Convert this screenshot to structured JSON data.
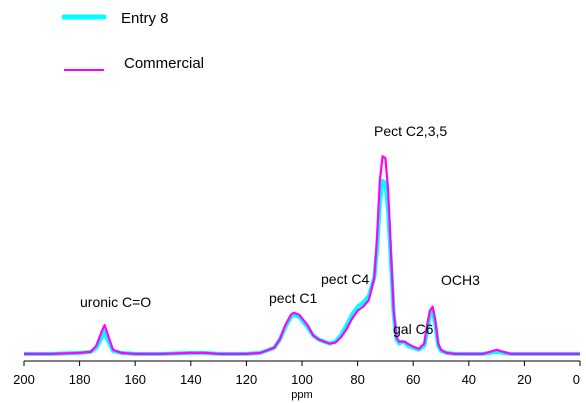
{
  "chart_data": {
    "type": "line",
    "xlabel": "ppm",
    "ylabel": "",
    "xlim": [
      200,
      0
    ],
    "x_reversed": true,
    "ylim": [
      0,
      1.0
    ],
    "grid": false,
    "legend_position": "top-left",
    "x_ticks": [
      "200",
      "180",
      "160",
      "140",
      "120",
      "100",
      "80",
      "60",
      "40",
      "20",
      "0"
    ],
    "annotations": [
      {
        "text": "uronic C=O",
        "x": 171
      },
      {
        "text": "pect C1",
        "x": 103
      },
      {
        "text": "pect C4",
        "x": 82
      },
      {
        "text": "Pect C2,3,5",
        "x": 71
      },
      {
        "text": "gal C6",
        "x": 62
      },
      {
        "text": "OCH3",
        "x": 53
      }
    ],
    "series": [
      {
        "name": "Entry 8",
        "color": "#00FFFF",
        "x": [
          200,
          190,
          180,
          176,
          174,
          172,
          171,
          170,
          168,
          165,
          160,
          150,
          140,
          135,
          130,
          120,
          115,
          110,
          108,
          106,
          104,
          103,
          101,
          98,
          96,
          94,
          92,
          90,
          88,
          86,
          84,
          82,
          80,
          78,
          76,
          74,
          73,
          72,
          71,
          70,
          69,
          68,
          67,
          66,
          65,
          64,
          63,
          62,
          60,
          58,
          56,
          55,
          54,
          53,
          52,
          51,
          50,
          48,
          45,
          40,
          35,
          30,
          25,
          20,
          10,
          0
        ],
        "y": [
          0.01,
          0.01,
          0.015,
          0.02,
          0.04,
          0.09,
          0.12,
          0.08,
          0.025,
          0.015,
          0.01,
          0.01,
          0.015,
          0.015,
          0.01,
          0.01,
          0.015,
          0.04,
          0.08,
          0.14,
          0.19,
          0.2,
          0.19,
          0.14,
          0.1,
          0.08,
          0.07,
          0.06,
          0.07,
          0.1,
          0.15,
          0.2,
          0.24,
          0.26,
          0.29,
          0.38,
          0.52,
          0.74,
          0.85,
          0.84,
          0.7,
          0.45,
          0.2,
          0.08,
          0.06,
          0.07,
          0.065,
          0.05,
          0.04,
          0.03,
          0.05,
          0.12,
          0.2,
          0.22,
          0.15,
          0.05,
          0.025,
          0.015,
          0.01,
          0.01,
          0.01,
          0.02,
          0.01,
          0.01,
          0.01,
          0.01
        ]
      },
      {
        "name": "Commercial",
        "color": "#FF00FF",
        "x": [
          200,
          190,
          180,
          176,
          174,
          172,
          171,
          170,
          168,
          165,
          160,
          150,
          140,
          135,
          130,
          120,
          115,
          110,
          108,
          106,
          104,
          103,
          101,
          98,
          96,
          94,
          92,
          90,
          88,
          86,
          84,
          82,
          80,
          78,
          76,
          74,
          73,
          72,
          71,
          70,
          69,
          68,
          67,
          66,
          65,
          64,
          63,
          62,
          60,
          58,
          56,
          55,
          54,
          53,
          52,
          51,
          50,
          48,
          45,
          40,
          35,
          30,
          25,
          20,
          10,
          0
        ],
        "y": [
          0.01,
          0.01,
          0.015,
          0.02,
          0.05,
          0.12,
          0.15,
          0.11,
          0.03,
          0.015,
          0.01,
          0.01,
          0.015,
          0.015,
          0.01,
          0.01,
          0.015,
          0.04,
          0.08,
          0.15,
          0.2,
          0.21,
          0.2,
          0.15,
          0.1,
          0.08,
          0.07,
          0.06,
          0.065,
          0.09,
          0.13,
          0.18,
          0.22,
          0.24,
          0.27,
          0.38,
          0.58,
          0.85,
          0.97,
          0.96,
          0.8,
          0.5,
          0.22,
          0.09,
          0.07,
          0.07,
          0.07,
          0.06,
          0.045,
          0.035,
          0.06,
          0.15,
          0.22,
          0.24,
          0.17,
          0.06,
          0.03,
          0.015,
          0.01,
          0.01,
          0.01,
          0.03,
          0.01,
          0.01,
          0.01,
          0.01
        ]
      }
    ]
  }
}
